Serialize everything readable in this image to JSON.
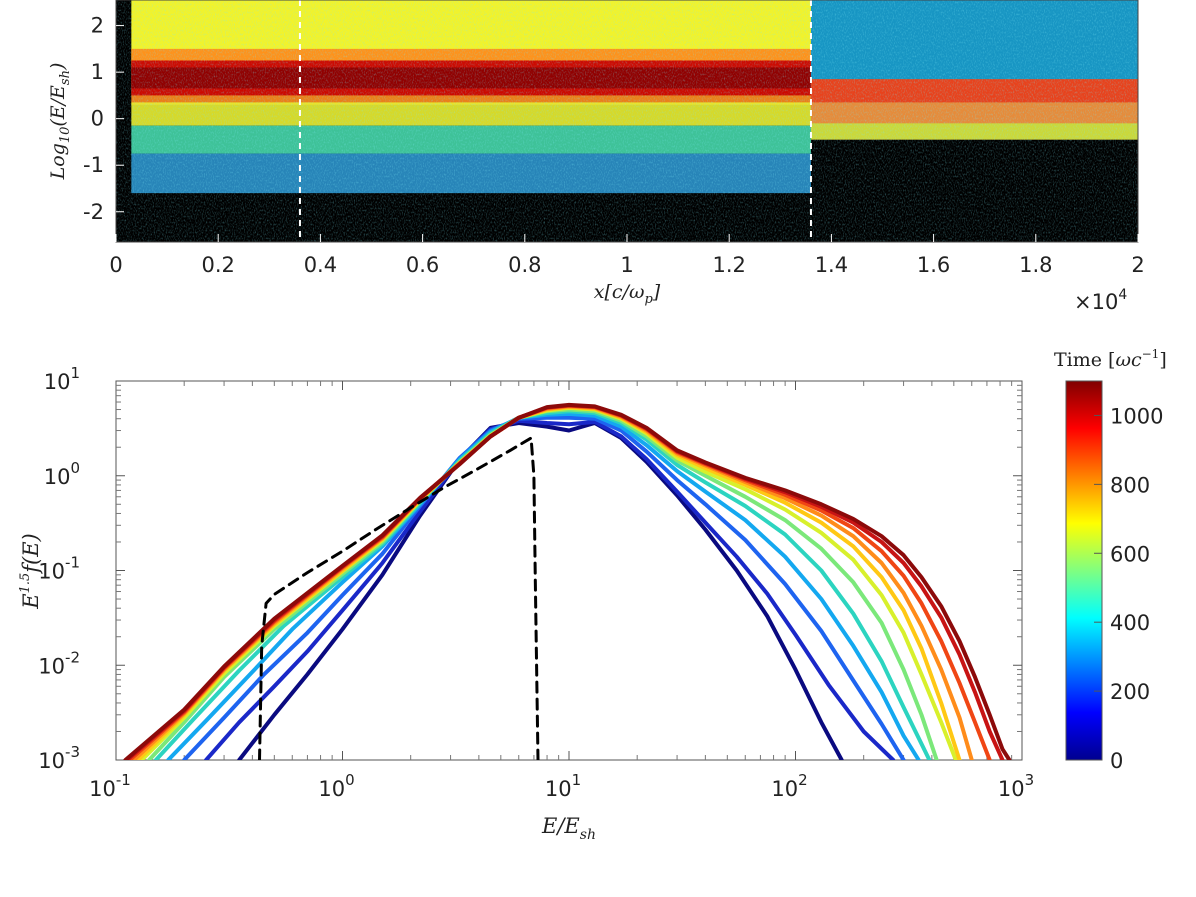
{
  "figure_title": "",
  "chart_data": [
    {
      "type": "heatmap",
      "title": "",
      "xlabel": "x[c/ωp]",
      "ylabel": "Log10(E/Esh)",
      "x_multiplier_label": "×10",
      "x_multiplier_exponent": "4",
      "xlim": [
        0,
        20000
      ],
      "ylim": [
        -2.65,
        2.55
      ],
      "x_ticks": [
        0,
        2000,
        4000,
        6000,
        8000,
        10000,
        12000,
        14000,
        16000,
        18000,
        20000
      ],
      "x_tick_labels": [
        "0",
        "0.2",
        "0.4",
        "0.6",
        "0.8",
        "1",
        "1.2",
        "1.4",
        "1.6",
        "1.8",
        "2"
      ],
      "y_ticks": [
        2,
        1,
        0,
        -1,
        -2
      ],
      "y_tick_labels": [
        "2",
        "1",
        "0",
        "-1",
        "-2"
      ],
      "dashed_markers_x": [
        3600,
        13600
      ],
      "shock_position_x": 13600,
      "colors": {
        "background": "#000000",
        "marker": "#ffffff"
      },
      "bands_upstream": [
        {
          "y_lo": 1.15,
          "y_hi": 2.55,
          "color": "#f2f32a"
        },
        {
          "y_lo": 0.3,
          "y_hi": 1.5,
          "color": "#ff8a1a"
        },
        {
          "y_lo": 0.5,
          "y_hi": 1.25,
          "color": "#c80000"
        },
        {
          "y_lo": 0.65,
          "y_hi": 1.1,
          "color": "#8c0000"
        },
        {
          "y_lo": -0.15,
          "y_hi": 0.35,
          "color": "#e8ec2c"
        },
        {
          "y_lo": -0.75,
          "y_hi": -0.15,
          "color": "#43d2a5"
        },
        {
          "y_lo": -1.6,
          "y_hi": -0.75,
          "color": "#2a8fc8"
        }
      ],
      "bands_downstream": [
        {
          "y_lo": -0.45,
          "y_hi": 0.85,
          "color": "#ff9a40"
        },
        {
          "y_lo": 0.35,
          "y_hi": 0.85,
          "color": "#e83a1a"
        },
        {
          "y_lo": -0.45,
          "y_hi": -0.1,
          "color": "#c8e03a"
        },
        {
          "y_lo": 0.85,
          "y_hi": 2.55,
          "color": "#1aa5d8"
        }
      ]
    },
    {
      "type": "line",
      "title": "",
      "xlabel": "E/Esh",
      "ylabel": "E^1.5 f(E)",
      "x_scale": "log",
      "y_scale": "log",
      "xlim": [
        0.1,
        1000
      ],
      "ylim": [
        0.001,
        10
      ],
      "x_tick_base": [
        "10",
        "10",
        "10",
        "10",
        "10"
      ],
      "x_tick_exponents": [
        "-1",
        "0",
        "1",
        "2",
        "3"
      ],
      "y_tick_base": [
        "10",
        "10",
        "10",
        "10",
        "10"
      ],
      "y_tick_exponents": [
        "-3",
        "-2",
        "-1",
        "0",
        "1"
      ],
      "series": [
        {
          "name": "t=60",
          "time": 60,
          "color": "#0a0a80",
          "x": [
            0.35,
            0.5,
            0.7,
            1.0,
            1.5,
            2.2,
            3.3,
            4.5,
            6,
            8,
            10,
            13,
            17,
            22,
            30,
            40,
            55,
            75,
            100,
            130,
            160
          ],
          "y": [
            0.001,
            0.003,
            0.008,
            0.024,
            0.09,
            0.38,
            1.5,
            3.2,
            3.6,
            3.3,
            3.0,
            3.6,
            2.5,
            1.4,
            0.62,
            0.27,
            0.1,
            0.033,
            0.009,
            0.0025,
            0.001
          ]
        },
        {
          "name": "t=120",
          "time": 120,
          "color": "#1a28c8",
          "x": [
            0.25,
            0.35,
            0.5,
            0.7,
            1.0,
            1.5,
            2.2,
            3.3,
            4.5,
            6,
            8,
            10,
            13,
            17,
            22,
            30,
            40,
            55,
            75,
            100,
            140,
            200,
            270
          ],
          "y": [
            0.001,
            0.0025,
            0.006,
            0.014,
            0.038,
            0.12,
            0.42,
            1.5,
            3.1,
            3.8,
            3.6,
            3.5,
            3.7,
            2.6,
            1.5,
            0.68,
            0.32,
            0.14,
            0.057,
            0.021,
            0.0062,
            0.002,
            0.001
          ]
        },
        {
          "name": "t=200",
          "time": 200,
          "color": "#1e64f0",
          "x": [
            0.2,
            0.3,
            0.45,
            0.7,
            1.0,
            1.5,
            2.2,
            3.3,
            4.5,
            6,
            8,
            10,
            13,
            17,
            22,
            30,
            40,
            60,
            90,
            130,
            180,
            240,
            300
          ],
          "y": [
            0.001,
            0.0028,
            0.008,
            0.022,
            0.055,
            0.15,
            0.48,
            1.55,
            3.0,
            4.0,
            4.1,
            4.1,
            4.0,
            3.0,
            1.8,
            0.9,
            0.5,
            0.21,
            0.072,
            0.023,
            0.0069,
            0.0024,
            0.001
          ]
        },
        {
          "name": "t=300",
          "time": 300,
          "color": "#14a8f0",
          "x": [
            0.17,
            0.25,
            0.4,
            0.6,
            1.0,
            1.5,
            2.2,
            3.3,
            4.5,
            6,
            8,
            10,
            13,
            17,
            22,
            30,
            40,
            60,
            90,
            130,
            180,
            240,
            300,
            350
          ],
          "y": [
            0.001,
            0.0026,
            0.0085,
            0.024,
            0.075,
            0.18,
            0.5,
            1.5,
            2.9,
            4.1,
            4.4,
            4.5,
            4.3,
            3.3,
            2.1,
            1.12,
            0.68,
            0.34,
            0.14,
            0.05,
            0.016,
            0.0052,
            0.0018,
            0.001
          ]
        },
        {
          "name": "t=420",
          "time": 420,
          "color": "#2cd4c0",
          "x": [
            0.15,
            0.22,
            0.35,
            0.55,
            1.0,
            1.5,
            2.2,
            3.3,
            4.5,
            6,
            8,
            10,
            13,
            17,
            22,
            30,
            40,
            60,
            90,
            130,
            180,
            240,
            300,
            390
          ],
          "y": [
            0.001,
            0.0027,
            0.0088,
            0.026,
            0.085,
            0.19,
            0.52,
            1.45,
            2.8,
            4.1,
            4.6,
            4.8,
            4.6,
            3.6,
            2.4,
            1.3,
            0.85,
            0.48,
            0.24,
            0.1,
            0.035,
            0.011,
            0.0036,
            0.001
          ]
        },
        {
          "name": "t=520",
          "time": 520,
          "color": "#7be87a",
          "x": [
            0.14,
            0.2,
            0.3,
            0.5,
            1.0,
            1.5,
            2.2,
            3.3,
            4.5,
            6,
            8,
            10,
            13,
            17,
            22,
            30,
            40,
            60,
            90,
            130,
            180,
            240,
            300,
            360,
            420
          ],
          "y": [
            0.001,
            0.0025,
            0.0075,
            0.024,
            0.092,
            0.2,
            0.54,
            1.4,
            2.7,
            4.1,
            4.8,
            5.0,
            4.8,
            3.8,
            2.6,
            1.45,
            1.0,
            0.6,
            0.34,
            0.17,
            0.075,
            0.028,
            0.009,
            0.003,
            0.001
          ]
        },
        {
          "name": "t=620",
          "time": 620,
          "color": "#d8f02c",
          "x": [
            0.13,
            0.2,
            0.3,
            0.5,
            1.0,
            1.5,
            2.2,
            3.3,
            4.5,
            6,
            8,
            10,
            13,
            17,
            22,
            30,
            40,
            60,
            90,
            130,
            180,
            240,
            300,
            360,
            440,
            510
          ],
          "y": [
            0.001,
            0.0028,
            0.0082,
            0.026,
            0.098,
            0.21,
            0.55,
            1.38,
            2.65,
            4.1,
            4.9,
            5.2,
            5.0,
            4.0,
            2.8,
            1.55,
            1.1,
            0.72,
            0.44,
            0.25,
            0.13,
            0.055,
            0.022,
            0.008,
            0.0025,
            0.001
          ]
        },
        {
          "name": "t=720",
          "time": 720,
          "color": "#ffc814",
          "x": [
            0.125,
            0.2,
            0.3,
            0.5,
            1.0,
            1.5,
            2.2,
            3.3,
            4.5,
            6,
            8,
            10,
            13,
            17,
            22,
            30,
            40,
            60,
            90,
            130,
            180,
            240,
            300,
            360,
            440,
            530
          ],
          "y": [
            0.001,
            0.003,
            0.0088,
            0.027,
            0.1,
            0.215,
            0.56,
            1.37,
            2.6,
            4.1,
            5.0,
            5.3,
            5.1,
            4.1,
            2.9,
            1.65,
            1.2,
            0.8,
            0.52,
            0.32,
            0.18,
            0.085,
            0.038,
            0.015,
            0.004,
            0.001
          ]
        },
        {
          "name": "t=820",
          "time": 820,
          "color": "#ff8c1a",
          "x": [
            0.12,
            0.2,
            0.3,
            0.5,
            1.0,
            1.5,
            2.2,
            3.3,
            4.5,
            6,
            8,
            10,
            13,
            17,
            22,
            30,
            40,
            60,
            90,
            130,
            180,
            240,
            300,
            360,
            440,
            530,
            600
          ],
          "y": [
            0.001,
            0.0031,
            0.009,
            0.028,
            0.105,
            0.22,
            0.57,
            1.36,
            2.6,
            4.1,
            5.1,
            5.4,
            5.2,
            4.2,
            3.0,
            1.72,
            1.28,
            0.86,
            0.58,
            0.38,
            0.23,
            0.12,
            0.058,
            0.026,
            0.009,
            0.0028,
            0.001
          ]
        },
        {
          "name": "t=920",
          "time": 920,
          "color": "#f04614",
          "x": [
            0.115,
            0.2,
            0.3,
            0.5,
            1.0,
            1.5,
            2.2,
            3.3,
            4.5,
            6,
            8,
            10,
            13,
            17,
            22,
            30,
            40,
            60,
            90,
            130,
            180,
            240,
            300,
            360,
            440,
            530,
            620,
            720
          ],
          "y": [
            0.001,
            0.0032,
            0.0093,
            0.029,
            0.108,
            0.225,
            0.575,
            1.35,
            2.6,
            4.1,
            5.2,
            5.5,
            5.3,
            4.3,
            3.1,
            1.78,
            1.33,
            0.9,
            0.63,
            0.43,
            0.28,
            0.16,
            0.088,
            0.045,
            0.018,
            0.0065,
            0.0025,
            0.001
          ]
        },
        {
          "name": "t=1020",
          "time": 1020,
          "color": "#c81414",
          "x": [
            0.112,
            0.2,
            0.3,
            0.5,
            1.0,
            1.5,
            2.2,
            3.3,
            4.5,
            6,
            8,
            10,
            13,
            17,
            22,
            30,
            40,
            60,
            90,
            130,
            180,
            240,
            300,
            360,
            440,
            530,
            620,
            720,
            820
          ],
          "y": [
            0.001,
            0.0033,
            0.0095,
            0.03,
            0.11,
            0.23,
            0.58,
            1.34,
            2.6,
            4.1,
            5.25,
            5.55,
            5.35,
            4.35,
            3.15,
            1.82,
            1.36,
            0.93,
            0.67,
            0.47,
            0.32,
            0.2,
            0.12,
            0.068,
            0.032,
            0.013,
            0.0052,
            0.002,
            0.001
          ]
        },
        {
          "name": "t=1100",
          "time": 1100,
          "color": "#8c0a0a",
          "x": [
            0.11,
            0.2,
            0.3,
            0.5,
            1.0,
            1.5,
            2.2,
            3.3,
            4.5,
            6,
            8,
            10,
            13,
            17,
            22,
            30,
            40,
            60,
            90,
            130,
            180,
            240,
            300,
            360,
            440,
            530,
            620,
            720,
            820,
            880
          ],
          "y": [
            0.001,
            0.0034,
            0.0097,
            0.031,
            0.112,
            0.235,
            0.585,
            1.33,
            2.6,
            4.1,
            5.3,
            5.6,
            5.4,
            4.4,
            3.2,
            1.85,
            1.38,
            0.95,
            0.7,
            0.5,
            0.35,
            0.23,
            0.145,
            0.085,
            0.042,
            0.018,
            0.0075,
            0.003,
            0.0013,
            0.001
          ]
        },
        {
          "name": "initial (dashed)",
          "time": null,
          "color": "#000000",
          "dashed": true,
          "x": [
            0.43,
            0.44,
            0.46,
            0.5,
            0.7,
            1.0,
            1.4,
            2.0,
            2.8,
            4.0,
            5.5,
            6.8,
            7.0,
            7.1,
            7.3
          ],
          "y": [
            0.001,
            0.016,
            0.045,
            0.056,
            0.095,
            0.16,
            0.27,
            0.46,
            0.75,
            1.2,
            1.85,
            2.5,
            1.0,
            0.08,
            0.001
          ]
        }
      ],
      "colorbar": {
        "title": "Time",
        "unit_base": "ωc",
        "unit_exponent": "−1",
        "range": [
          0,
          1100
        ],
        "ticks": [
          0,
          200,
          400,
          600,
          800,
          1000
        ],
        "tick_labels": [
          "0",
          "200",
          "400",
          "600",
          "800",
          "1000"
        ],
        "colormap": [
          "#00008f",
          "#0000ff",
          "#0080ff",
          "#00ffff",
          "#80ff80",
          "#ffff00",
          "#ff8000",
          "#ff0000",
          "#800000"
        ]
      }
    }
  ]
}
